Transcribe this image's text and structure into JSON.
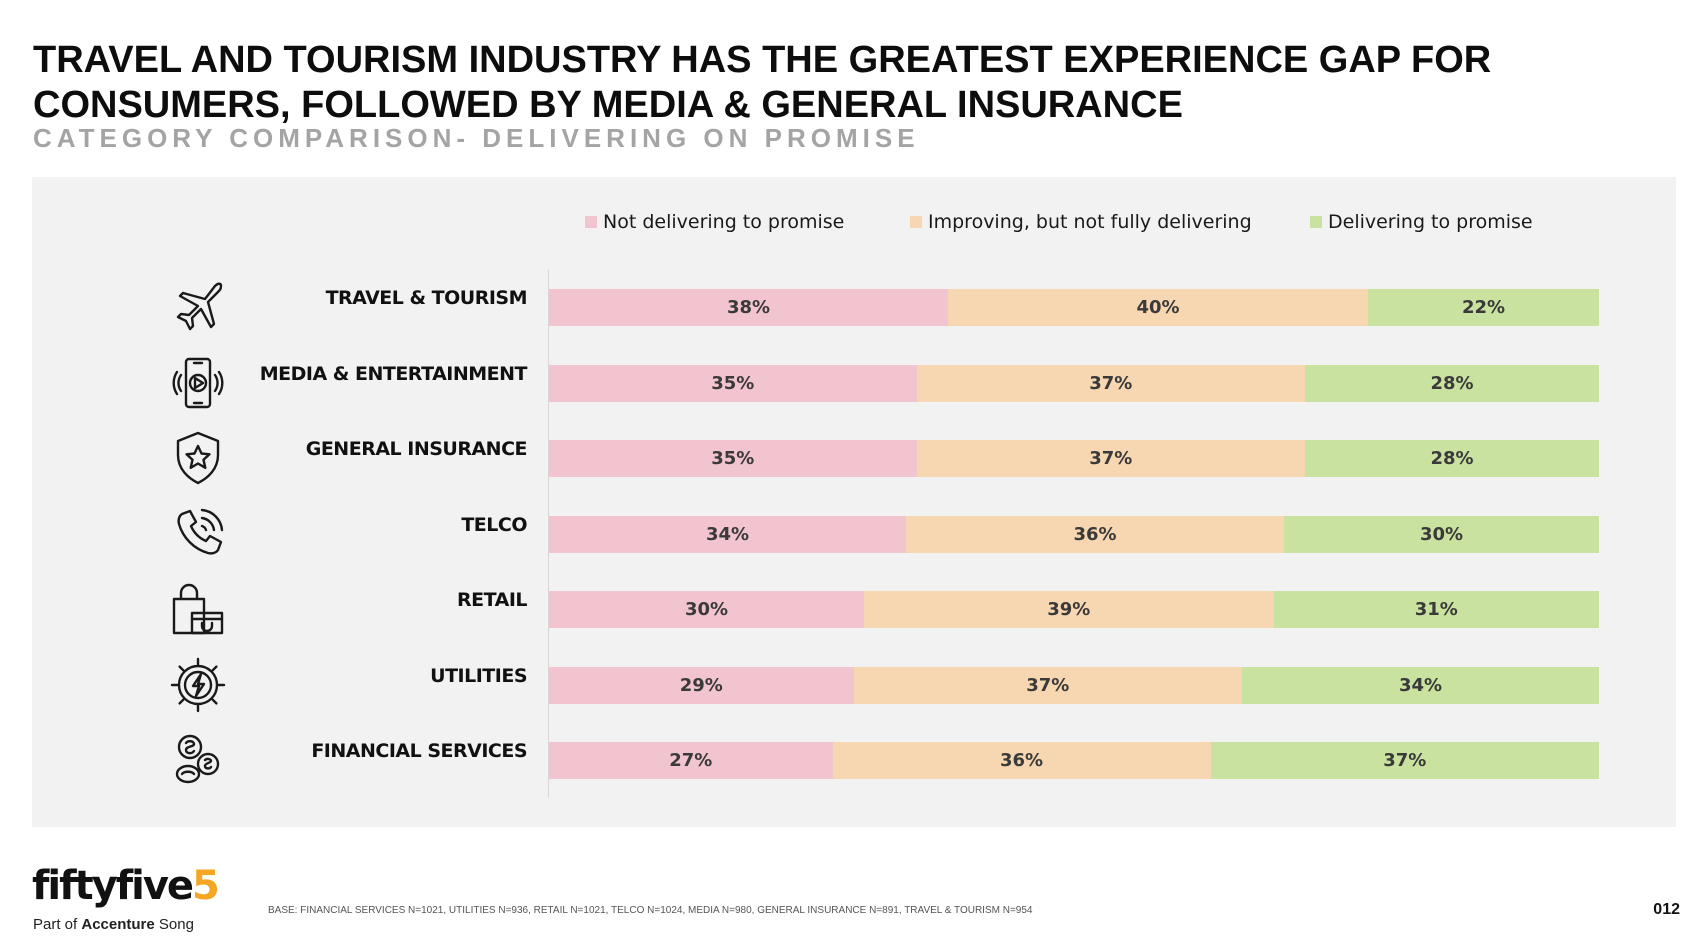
{
  "header": {
    "title_line1": "TRAVEL AND TOURISM INDUSTRY HAS THE GREATEST EXPERIENCE GAP FOR",
    "title_line2": "CONSUMERS, FOLLOWED BY MEDIA & GENERAL INSURANCE",
    "subtitle": "CATEGORY COMPARISON- DELIVERING ON PROMISE"
  },
  "chart_data": {
    "type": "bar",
    "orientation": "horizontal",
    "stacked": true,
    "normalized_to_100": true,
    "title": "CATEGORY COMPARISON- DELIVERING ON PROMISE",
    "xlabel": "",
    "ylabel": "",
    "xlim": [
      0,
      100
    ],
    "grid": false,
    "legend_position": "top",
    "categories": [
      "TRAVEL & TOURISM",
      "MEDIA & ENTERTAINMENT",
      "GENERAL INSURANCE",
      "TELCO",
      "RETAIL",
      "UTILITIES",
      "FINANCIAL SERVICES"
    ],
    "category_icons": [
      "airplane-icon",
      "smartphone-play-icon",
      "shield-star-icon",
      "phone-ringing-icon",
      "shopping-bag-icon",
      "gear-lightning-icon",
      "coins-icon"
    ],
    "series": [
      {
        "name": "Not delivering to promise",
        "color": "#f2c4cf",
        "values": [
          38,
          35,
          35,
          34,
          30,
          29,
          27
        ],
        "labels": [
          "38%",
          "35%",
          "35%",
          "34%",
          "30%",
          "29%",
          "27%"
        ]
      },
      {
        "name": "Improving, but not fully delivering",
        "color": "#f7d7b1",
        "values": [
          40,
          37,
          37,
          36,
          39,
          37,
          36
        ],
        "labels": [
          "40%",
          "37%",
          "37%",
          "36%",
          "39%",
          "37%",
          "36%"
        ]
      },
      {
        "name": "Delivering to promise",
        "color": "#c9e2a0",
        "values": [
          22,
          28,
          28,
          30,
          31,
          34,
          37
        ],
        "labels": [
          "22%",
          "28%",
          "28%",
          "30%",
          "31%",
          "34%",
          "37%"
        ]
      }
    ]
  },
  "footer": {
    "logo_text": "fiftyfive",
    "logo_accent": "5",
    "part_of_prefix": "Part of ",
    "part_of_brand": "Accenture",
    "part_of_suffix": " Song",
    "base_note": "BASE: FINANCIAL SERVICES N=1021, UTILITIES N=936, RETAIL N=1021, TELCO N=1024, MEDIA N=980, GENERAL INSURANCE N=891, TRAVEL & TOURISM N=954",
    "page_number": "012"
  }
}
